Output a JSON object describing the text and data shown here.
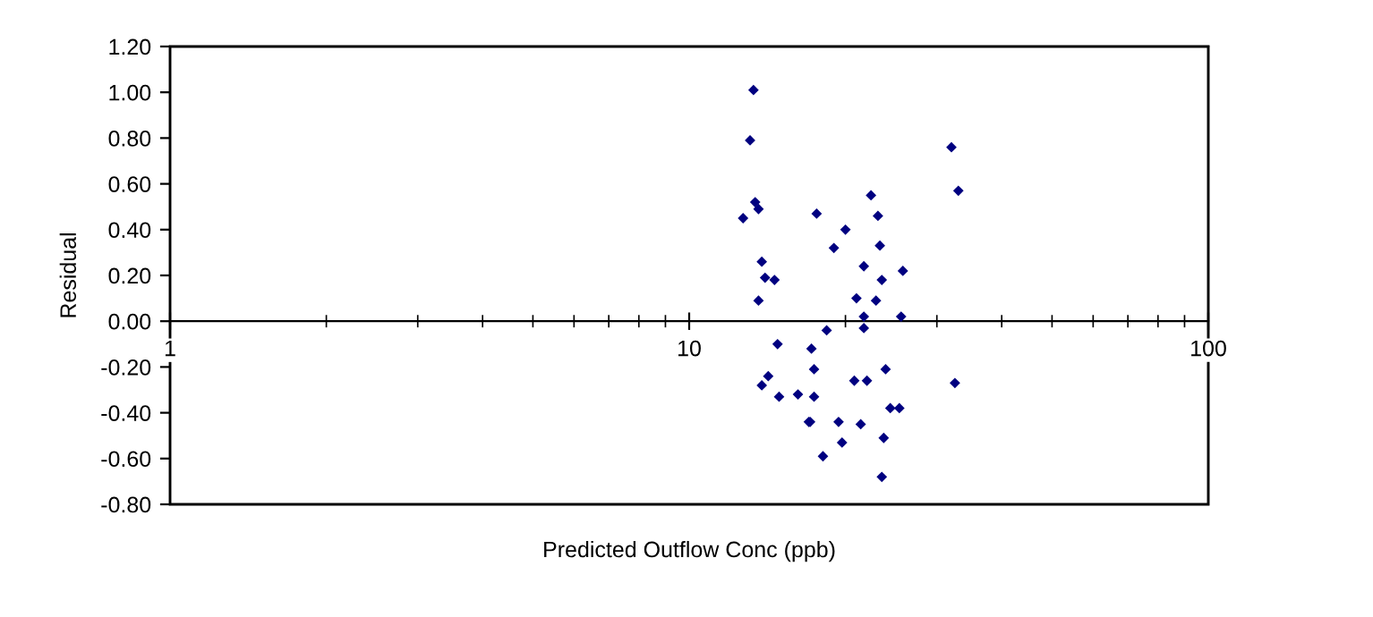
{
  "chart_data": {
    "type": "scatter",
    "xlabel": "Predicted Outflow Conc (ppb)",
    "ylabel": "Residual",
    "log": "x",
    "xlim": [
      1,
      100
    ],
    "xticks": [
      1,
      10,
      100
    ],
    "ylim": [
      -0.8,
      1.2
    ],
    "yticks": [
      {
        "value": -0.8,
        "label": "-0.80"
      },
      {
        "value": -0.6,
        "label": "-0.60"
      },
      {
        "value": -0.4,
        "label": "-0.40"
      },
      {
        "value": -0.2,
        "label": "-0.20"
      },
      {
        "value": 0,
        "label": "0.00"
      },
      {
        "value": 0.2,
        "label": "0.20"
      },
      {
        "value": 0.4,
        "label": "0.40"
      },
      {
        "value": 0.6,
        "label": "0.60"
      },
      {
        "value": 0.8,
        "label": "0.80"
      },
      {
        "value": 1.0,
        "label": "1.00"
      },
      {
        "value": 1.2,
        "label": "1.20"
      }
    ],
    "grid": false,
    "marker": "diamond",
    "series": [
      {
        "color": "#000080",
        "x": [
          13.3,
          13.1,
          32.0,
          13.4,
          13.6,
          12.7,
          22.4,
          33.0,
          17.6,
          23.1,
          20.0,
          19.0,
          23.3,
          13.8,
          21.7,
          25.8,
          14.0,
          14.6,
          23.5,
          21.0,
          22.9,
          13.6,
          21.7,
          25.6,
          18.4,
          21.7,
          14.8,
          17.2,
          17.4,
          14.2,
          13.8,
          14.9,
          16.2,
          17.4,
          20.8,
          22.0,
          23.9,
          32.5,
          24.4,
          25.4,
          17.0,
          17.1,
          19.4,
          21.4,
          23.7,
          19.7,
          18.1,
          23.5
        ],
        "values": [
          1.01,
          0.79,
          0.76,
          0.52,
          0.49,
          0.45,
          0.55,
          0.57,
          0.47,
          0.46,
          0.4,
          0.32,
          0.33,
          0.26,
          0.24,
          0.22,
          0.19,
          0.18,
          0.18,
          0.1,
          0.09,
          0.09,
          0.02,
          0.02,
          -0.04,
          -0.03,
          -0.1,
          -0.12,
          -0.21,
          -0.24,
          -0.28,
          -0.33,
          -0.32,
          -0.33,
          -0.26,
          -0.26,
          -0.21,
          -0.27,
          -0.38,
          -0.38,
          -0.44,
          -0.44,
          -0.44,
          -0.45,
          -0.51,
          -0.53,
          -0.59,
          -0.68
        ]
      }
    ]
  }
}
